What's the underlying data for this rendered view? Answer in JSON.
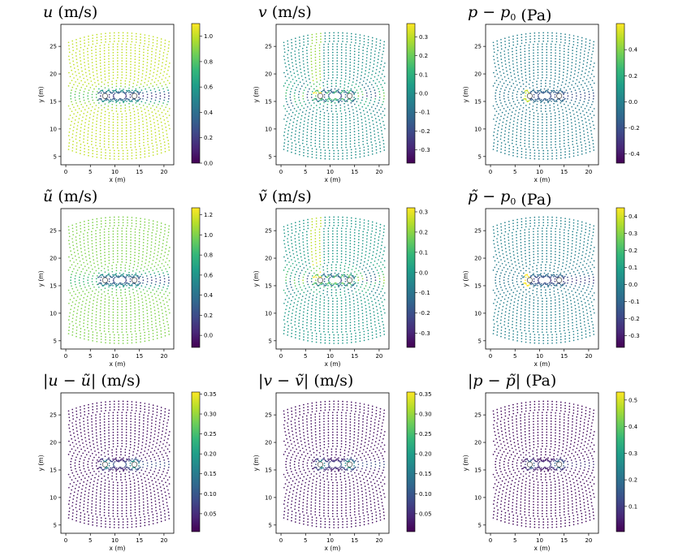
{
  "chart_data": [
    {
      "type": "scatter",
      "title_parts": [
        {
          "t": "u",
          "i": true
        },
        {
          "t": "  (m/s)"
        }
      ],
      "xlabel": "x (m)",
      "ylabel": "y (m)",
      "xlim": [
        -1,
        22
      ],
      "ylim": [
        3.5,
        29
      ],
      "xticks": [
        0,
        5,
        10,
        15,
        20
      ],
      "yticks": [
        5,
        10,
        15,
        20,
        25
      ],
      "colorbar": {
        "min": 0.0,
        "max": 1.1,
        "ticks": [
          0.0,
          0.2,
          0.4,
          0.6,
          0.8,
          1.0
        ],
        "labels": [
          "0.0",
          "0.2",
          "0.4",
          "0.6",
          "0.8",
          "1.0"
        ]
      },
      "field": "u",
      "grid": false
    },
    {
      "type": "scatter",
      "title_parts": [
        {
          "t": "v",
          "i": true
        },
        {
          "t": "  (m/s)"
        }
      ],
      "xlabel": "x (m)",
      "ylabel": "y (m)",
      "xlim": [
        -1,
        22
      ],
      "ylim": [
        3.5,
        29
      ],
      "xticks": [
        0,
        5,
        10,
        15,
        20
      ],
      "yticks": [
        5,
        10,
        15,
        20,
        25
      ],
      "colorbar": {
        "min": -0.37,
        "max": 0.37,
        "ticks": [
          -0.3,
          -0.2,
          -0.1,
          0.0,
          0.1,
          0.2,
          0.3
        ],
        "labels": [
          "-0.3",
          "-0.2",
          "-0.1",
          "0.0",
          "0.1",
          "0.2",
          "0.3"
        ]
      },
      "field": "v",
      "grid": false
    },
    {
      "type": "scatter",
      "title_parts": [
        {
          "t": "p",
          "i": true
        },
        {
          "t": " − "
        },
        {
          "t": "p",
          "i": true
        },
        {
          "t": "0",
          "sub": true
        },
        {
          "t": "  (Pa)"
        }
      ],
      "xlabel": "x (m)",
      "ylabel": "y (m)",
      "xlim": [
        -1,
        22
      ],
      "ylim": [
        3.5,
        29
      ],
      "xticks": [
        0,
        5,
        10,
        15,
        20
      ],
      "yticks": [
        5,
        10,
        15,
        20,
        25
      ],
      "colorbar": {
        "min": -0.47,
        "max": 0.6,
        "ticks": [
          -0.4,
          -0.2,
          0.0,
          0.2,
          0.4
        ],
        "labels": [
          "-0.4",
          "-0.2",
          "0.0",
          "0.2",
          "0.4"
        ]
      },
      "field": "p",
      "grid": false
    },
    {
      "type": "scatter",
      "title_parts": [
        {
          "t": "ũ",
          "i": true
        },
        {
          "t": "  (m/s)"
        }
      ],
      "xlabel": "x (m)",
      "ylabel": "y (m)",
      "xlim": [
        -1,
        22
      ],
      "ylim": [
        3.5,
        29
      ],
      "xticks": [
        0,
        5,
        10,
        15,
        20
      ],
      "yticks": [
        5,
        10,
        15,
        20,
        25
      ],
      "colorbar": {
        "min": -0.12,
        "max": 1.27,
        "ticks": [
          0.0,
          0.2,
          0.4,
          0.6,
          0.8,
          1.0,
          1.2
        ],
        "labels": [
          "0.0",
          "0.2",
          "0.4",
          "0.6",
          "0.8",
          "1.0",
          "1.2"
        ]
      },
      "field": "u",
      "grid": false
    },
    {
      "type": "scatter",
      "title_parts": [
        {
          "t": "ṽ",
          "i": true
        },
        {
          "t": "  (m/s)"
        }
      ],
      "xlabel": "x (m)",
      "ylabel": "y (m)",
      "xlim": [
        -1,
        22
      ],
      "ylim": [
        3.5,
        29
      ],
      "xticks": [
        0,
        5,
        10,
        15,
        20
      ],
      "yticks": [
        5,
        10,
        15,
        20,
        25
      ],
      "colorbar": {
        "min": -0.37,
        "max": 0.32,
        "ticks": [
          -0.3,
          -0.2,
          -0.1,
          0.0,
          0.1,
          0.2,
          0.3
        ],
        "labels": [
          "-0.3",
          "-0.2",
          "-0.1",
          "0.0",
          "0.1",
          "0.2",
          "0.3"
        ]
      },
      "field": "v",
      "grid": false
    },
    {
      "type": "scatter",
      "title_parts": [
        {
          "t": "p̃",
          "i": true
        },
        {
          "t": " − "
        },
        {
          "t": "p",
          "i": true
        },
        {
          "t": "0",
          "sub": true
        },
        {
          "t": "  (Pa)"
        }
      ],
      "xlabel": "x (m)",
      "ylabel": "y (m)",
      "xlim": [
        -1,
        22
      ],
      "ylim": [
        3.5,
        29
      ],
      "xticks": [
        0,
        5,
        10,
        15,
        20
      ],
      "yticks": [
        5,
        10,
        15,
        20,
        25
      ],
      "colorbar": {
        "min": -0.37,
        "max": 0.45,
        "ticks": [
          -0.3,
          -0.2,
          -0.1,
          0.0,
          0.1,
          0.2,
          0.3,
          0.4
        ],
        "labels": [
          "-0.3",
          "-0.2",
          "-0.1",
          "0.0",
          "0.1",
          "0.2",
          "0.3",
          "0.4"
        ]
      },
      "field": "p",
      "grid": false
    },
    {
      "type": "scatter",
      "title_parts": [
        {
          "t": "|"
        },
        {
          "t": "u",
          "i": true
        },
        {
          "t": " − "
        },
        {
          "t": "ũ",
          "i": true
        },
        {
          "t": "|"
        },
        {
          "t": "  (m/s)"
        }
      ],
      "xlabel": "x (m)",
      "ylabel": "y (m)",
      "xlim": [
        -1,
        22
      ],
      "ylim": [
        3.5,
        29
      ],
      "xticks": [
        0,
        5,
        10,
        15,
        20
      ],
      "yticks": [
        5,
        10,
        15,
        20,
        25
      ],
      "colorbar": {
        "min": 0.005,
        "max": 0.355,
        "ticks": [
          0.05,
          0.1,
          0.15,
          0.2,
          0.25,
          0.3,
          0.35
        ],
        "labels": [
          "0.05",
          "0.10",
          "0.15",
          "0.20",
          "0.25",
          "0.30",
          "0.35"
        ]
      },
      "field": "err",
      "grid": false
    },
    {
      "type": "scatter",
      "title_parts": [
        {
          "t": "|"
        },
        {
          "t": "v",
          "i": true
        },
        {
          "t": " − "
        },
        {
          "t": "ṽ",
          "i": true
        },
        {
          "t": "|"
        },
        {
          "t": "  (m/s)"
        }
      ],
      "xlabel": "x (m)",
      "ylabel": "y (m)",
      "xlim": [
        -1,
        22
      ],
      "ylim": [
        3.5,
        29
      ],
      "xticks": [
        0,
        5,
        10,
        15,
        20
      ],
      "yticks": [
        5,
        10,
        15,
        20,
        25
      ],
      "colorbar": {
        "min": 0.005,
        "max": 0.355,
        "ticks": [
          0.05,
          0.1,
          0.15,
          0.2,
          0.25,
          0.3,
          0.35
        ],
        "labels": [
          "0.05",
          "0.10",
          "0.15",
          "0.20",
          "0.25",
          "0.30",
          "0.35"
        ]
      },
      "field": "err",
      "grid": false
    },
    {
      "type": "scatter",
      "title_parts": [
        {
          "t": "|"
        },
        {
          "t": "p",
          "i": true
        },
        {
          "t": " − "
        },
        {
          "t": "p̃",
          "i": true
        },
        {
          "t": "|"
        },
        {
          "t": "  (Pa)"
        }
      ],
      "xlabel": "x (m)",
      "ylabel": "y (m)",
      "xlim": [
        -1,
        22
      ],
      "ylim": [
        3.5,
        29
      ],
      "xticks": [
        0,
        5,
        10,
        15,
        20
      ],
      "yticks": [
        5,
        10,
        15,
        20,
        25
      ],
      "colorbar": {
        "min": 0.005,
        "max": 0.53,
        "ticks": [
          0.1,
          0.2,
          0.3,
          0.4,
          0.5
        ],
        "labels": [
          "0.1",
          "0.2",
          "0.3",
          "0.4",
          "0.5"
        ]
      },
      "field": "err",
      "grid": false
    }
  ],
  "cylinders": [
    [
      8,
      16
    ],
    [
      14,
      16
    ]
  ],
  "colormap": "viridis",
  "colormap_stops": [
    "#440154",
    "#482878",
    "#3e4a89",
    "#31688e",
    "#26828e",
    "#1f9e89",
    "#35b779",
    "#6ece58",
    "#b5de2b",
    "#fde725"
  ]
}
